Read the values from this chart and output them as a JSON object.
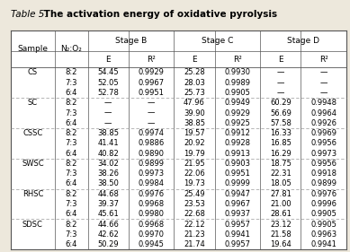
{
  "title_italic": "Table 5.",
  "title_bold": " The activation energy of oxidative pyrolysis",
  "rows": [
    [
      "CS",
      "8:2",
      "54.45",
      "0.9929",
      "25.28",
      "0.9930",
      "—",
      "—"
    ],
    [
      "",
      "7:3",
      "52.05",
      "0.9967",
      "28.03",
      "0.9989",
      "—",
      "—"
    ],
    [
      "",
      "6:4",
      "52.78",
      "0.9951",
      "25.73",
      "0.9905",
      "—",
      "—"
    ],
    [
      "SC",
      "8:2",
      "—",
      "—",
      "47.96",
      "0.9949",
      "60.29",
      "0.9948"
    ],
    [
      "",
      "7:3",
      "—",
      "—",
      "39.90",
      "0.9929",
      "56.69",
      "0.9964"
    ],
    [
      "",
      "6:4",
      "—",
      "—",
      "38.85",
      "0.9925",
      "57.58",
      "0.9926"
    ],
    [
      "CSSC",
      "8:2",
      "38.85",
      "0.9974",
      "19.57",
      "0.9912",
      "16.33",
      "0.9969"
    ],
    [
      "",
      "7:3",
      "41.41",
      "0.9886",
      "20.92",
      "0.9928",
      "16.85",
      "0.9956"
    ],
    [
      "",
      "6:4",
      "40.82",
      "0.9890",
      "19.79",
      "0.9913",
      "16.29",
      "0.9973"
    ],
    [
      "SWSC",
      "8:2",
      "34.02",
      "0.9899",
      "21.95",
      "0.9903",
      "18.75",
      "0.9956"
    ],
    [
      "",
      "7:3",
      "38.26",
      "0.9973",
      "22.06",
      "0.9951",
      "22.31",
      "0.9918"
    ],
    [
      "",
      "6:4",
      "38.50",
      "0.9984",
      "19.73",
      "0.9999",
      "18.05",
      "0.9899"
    ],
    [
      "RHSC",
      "8:2",
      "44.68",
      "0.9976",
      "25.49",
      "0.9947",
      "27.81",
      "0.9976"
    ],
    [
      "",
      "7:3",
      "39.37",
      "0.9968",
      "23.53",
      "0.9967",
      "21.00",
      "0.9996"
    ],
    [
      "",
      "6:4",
      "45.61",
      "0.9980",
      "22.68",
      "0.9937",
      "28.61",
      "0.9905"
    ],
    [
      "SDSC",
      "8:2",
      "44.66",
      "0.9968",
      "22.12",
      "0.9957",
      "23.12",
      "0.9905"
    ],
    [
      "",
      "7:3",
      "42.62",
      "0.9970",
      "21.23",
      "0.9941",
      "21.58",
      "0.9963"
    ],
    [
      "",
      "6:4",
      "50.29",
      "0.9945",
      "21.74",
      "0.9957",
      "19.64",
      "0.9941"
    ]
  ],
  "group_separators": [
    3,
    6,
    9,
    12,
    15
  ],
  "background_color": "#ede8dc",
  "table_bg": "#ffffff"
}
